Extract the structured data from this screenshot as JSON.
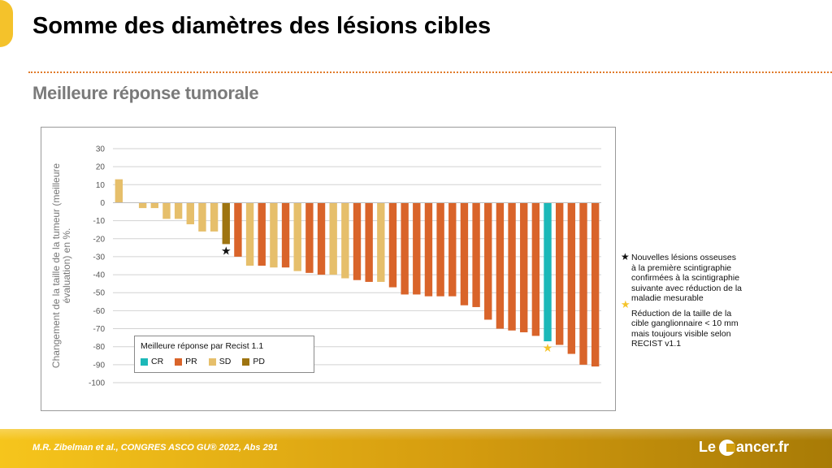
{
  "header": {
    "title": "Somme des diamètres des lésions cibles",
    "subtitle": "Meilleure réponse tumorale"
  },
  "chart_data": {
    "type": "bar",
    "title": "",
    "xlabel": "",
    "ylabel": "Changement de la taille de la tumeur (meilleure évaluation) en %.",
    "ylim": [
      -100,
      30
    ],
    "yticks": [
      30,
      20,
      10,
      0,
      -10,
      -20,
      -30,
      -40,
      -50,
      -60,
      -70,
      -80,
      -90,
      -100
    ],
    "grid": true,
    "legend": {
      "title": "Meilleure réponse par Recist 1.1",
      "placement": "bottom-left",
      "entries": [
        {
          "code": "CR",
          "color": "#1cb8b8"
        },
        {
          "code": "PR",
          "color": "#d9642a"
        },
        {
          "code": "SD",
          "color": "#e6bf6b"
        },
        {
          "code": "PD",
          "color": "#9e7410"
        }
      ]
    },
    "bars": [
      {
        "value": 13,
        "response": "SD"
      },
      {
        "value": 0,
        "response": "SD"
      },
      {
        "value": -3,
        "response": "SD"
      },
      {
        "value": -3,
        "response": "SD"
      },
      {
        "value": -9,
        "response": "SD"
      },
      {
        "value": -9,
        "response": "SD"
      },
      {
        "value": -12,
        "response": "SD"
      },
      {
        "value": -16,
        "response": "SD"
      },
      {
        "value": -16,
        "response": "SD"
      },
      {
        "value": -23,
        "response": "PD",
        "marker": "black-star"
      },
      {
        "value": -30,
        "response": "PR"
      },
      {
        "value": -35,
        "response": "SD"
      },
      {
        "value": -35,
        "response": "PR"
      },
      {
        "value": -36,
        "response": "SD"
      },
      {
        "value": -36,
        "response": "PR"
      },
      {
        "value": -38,
        "response": "SD"
      },
      {
        "value": -39,
        "response": "PR"
      },
      {
        "value": -40,
        "response": "PR"
      },
      {
        "value": -40,
        "response": "SD"
      },
      {
        "value": -42,
        "response": "SD"
      },
      {
        "value": -43,
        "response": "PR"
      },
      {
        "value": -44,
        "response": "PR"
      },
      {
        "value": -44,
        "response": "SD"
      },
      {
        "value": -47,
        "response": "PR"
      },
      {
        "value": -51,
        "response": "PR"
      },
      {
        "value": -51,
        "response": "PR"
      },
      {
        "value": -52,
        "response": "PR"
      },
      {
        "value": -52,
        "response": "PR"
      },
      {
        "value": -52,
        "response": "PR"
      },
      {
        "value": -57,
        "response": "PR"
      },
      {
        "value": -58,
        "response": "PR"
      },
      {
        "value": -65,
        "response": "PR"
      },
      {
        "value": -70,
        "response": "PR"
      },
      {
        "value": -71,
        "response": "PR"
      },
      {
        "value": -72,
        "response": "PR"
      },
      {
        "value": -74,
        "response": "PR"
      },
      {
        "value": -77,
        "response": "CR",
        "marker": "yellow-star"
      },
      {
        "value": -79,
        "response": "PR"
      },
      {
        "value": -84,
        "response": "PR"
      },
      {
        "value": -90,
        "response": "PR"
      },
      {
        "value": -91,
        "response": "PR"
      }
    ],
    "annotations": [
      {
        "marker": "black-star",
        "glyph": "★",
        "text": "Nouvelles lésions osseuses à la première scintigraphie confirmées à la scintigraphie suivante avec réduction de la maladie mesurable"
      },
      {
        "marker": "yellow-star",
        "glyph": "★",
        "text": "Réduction de la taille de la cible ganglionnaire < 10 mm mais toujours visible selon RECIST v1.1"
      }
    ]
  },
  "colors": {
    "CR": "#1cb8b8",
    "PR": "#d9642a",
    "SD": "#e6bf6b",
    "PD": "#9e7410",
    "black-star": "#111111",
    "yellow-star": "#f5c42b"
  },
  "footer": {
    "citation": "M.R. Zibelman et al., CONGRES ASCO GU® 2022, Abs 291",
    "logo_left": "Le",
    "logo_right": "ancer.fr"
  }
}
